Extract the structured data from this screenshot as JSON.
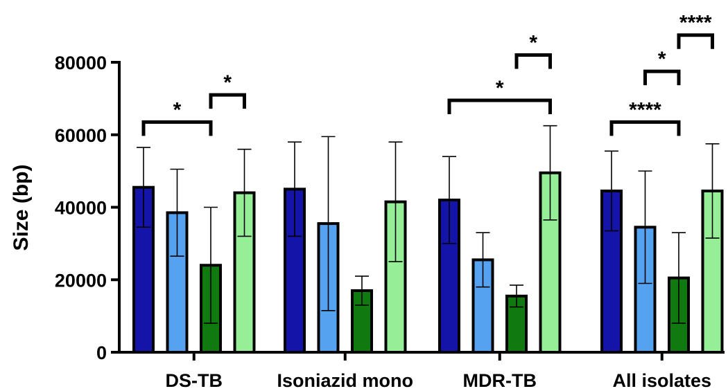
{
  "chart_data": {
    "type": "bar",
    "title": "",
    "xlabel": "",
    "ylabel": "Size (bp)",
    "ylim": [
      0,
      80000
    ],
    "yticks": [
      0,
      20000,
      40000,
      60000,
      80000
    ],
    "ytick_labels": [
      "0",
      "20000",
      "40000",
      "60000",
      "80000"
    ],
    "grid": false,
    "legend": "none",
    "categories": [
      "DS-TB",
      "Isoniazid mono",
      "MDR-TB",
      "All isolates"
    ],
    "series": [
      {
        "color": "#1414A8",
        "values": [
          45500,
          45000,
          42000,
          44500
        ],
        "error": [
          11000,
          13000,
          12000,
          11000
        ]
      },
      {
        "color": "#55A3F0",
        "values": [
          38500,
          35500,
          25500,
          34500
        ],
        "error": [
          12000,
          24000,
          7500,
          15500
        ]
      },
      {
        "color": "#107A10",
        "values": [
          24000,
          17000,
          15500,
          20500
        ],
        "error": [
          16000,
          4000,
          3000,
          12500
        ]
      },
      {
        "color": "#96EE96",
        "values": [
          44000,
          41500,
          49500,
          44500
        ],
        "error": [
          12000,
          16500,
          13000,
          13000
        ]
      }
    ],
    "significance": [
      {
        "category": 0,
        "from_series": 0,
        "to_series": 2,
        "level": 63500,
        "label": "*"
      },
      {
        "category": 0,
        "from_series": 2,
        "to_series": 3,
        "level": 71000,
        "label": "*"
      },
      {
        "category": 2,
        "from_series": 0,
        "to_series": 3,
        "level": 69500,
        "label": "*"
      },
      {
        "category": 2,
        "from_series": 2,
        "to_series": 3,
        "level": 82000,
        "label": "*"
      },
      {
        "category": 3,
        "from_series": 0,
        "to_series": 2,
        "level": 63500,
        "label": "****"
      },
      {
        "category": 3,
        "from_series": 1,
        "to_series": 2,
        "level": 77500,
        "label": "*"
      },
      {
        "category": 3,
        "from_series": 2,
        "to_series": 3,
        "level": 87500,
        "label": "****"
      }
    ]
  }
}
